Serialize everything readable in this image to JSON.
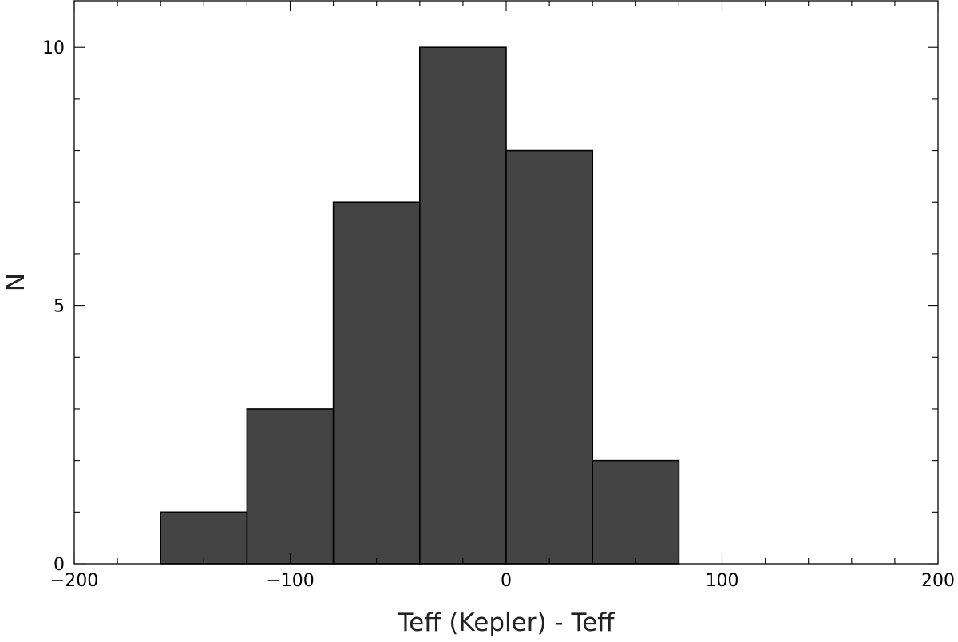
{
  "chart_data": {
    "type": "bar",
    "title": "",
    "xlabel": "Teff (Kepler) - Teff",
    "ylabel": "N",
    "xlim": [
      -200,
      200
    ],
    "ylim": [
      0,
      10.9
    ],
    "x_ticks": [
      {
        "value": -200,
        "label": "−200"
      },
      {
        "value": -100,
        "label": "−100"
      },
      {
        "value": 0,
        "label": "0"
      },
      {
        "value": 100,
        "label": "100"
      },
      {
        "value": 200,
        "label": "200"
      }
    ],
    "y_ticks": [
      {
        "value": 0,
        "label": "0"
      },
      {
        "value": 5,
        "label": "5"
      },
      {
        "value": 10,
        "label": "10"
      }
    ],
    "x_minor_step": 20,
    "y_minor_step": 1,
    "bins": [
      {
        "x0": -160,
        "x1": -120,
        "value": 1
      },
      {
        "x0": -120,
        "x1": -80,
        "value": 3
      },
      {
        "x0": -80,
        "x1": -40,
        "value": 7
      },
      {
        "x0": -40,
        "x1": 0,
        "value": 10
      },
      {
        "x0": 0,
        "x1": 40,
        "value": 8
      },
      {
        "x0": 40,
        "x1": 80,
        "value": 2
      }
    ],
    "bar_color": "#444444",
    "edge_color": "#000000",
    "grid": false,
    "legend": "none"
  }
}
